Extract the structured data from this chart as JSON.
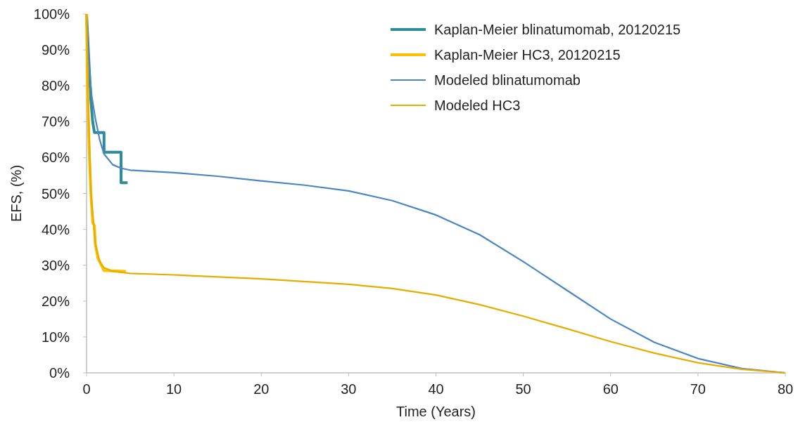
{
  "chart_data": {
    "type": "line",
    "xlabel": "Time (Years)",
    "ylabel": "EFS, (%)",
    "xlim": [
      0,
      80
    ],
    "xticks": [
      0,
      10,
      20,
      30,
      40,
      50,
      60,
      70,
      80
    ],
    "ylim": [
      0,
      100
    ],
    "yticks": [
      {
        "value": 0,
        "label": "0%"
      },
      {
        "value": 10,
        "label": "10%"
      },
      {
        "value": 20,
        "label": "20%"
      },
      {
        "value": 30,
        "label": "30%"
      },
      {
        "value": 40,
        "label": "40%"
      },
      {
        "value": 50,
        "label": "50%"
      },
      {
        "value": 60,
        "label": "60%"
      },
      {
        "value": 70,
        "label": "70%"
      },
      {
        "value": 80,
        "label": "80%"
      },
      {
        "value": 90,
        "label": "90%"
      },
      {
        "value": 100,
        "label": "100%"
      }
    ],
    "grid": false,
    "legend": "top right",
    "marker": "none",
    "line_style": "solid",
    "series": [
      {
        "name": "Kaplan-Meier blinatumomab, 20120215",
        "color": "#2e8b9a",
        "x": [
          0,
          0.1,
          0.3,
          0.5,
          0.7,
          0.9,
          2.0,
          2.0,
          3.95,
          3.95,
          4.7
        ],
        "values": [
          100,
          95,
          85,
          76,
          70,
          67,
          67,
          61.5,
          61.5,
          53,
          53
        ]
      },
      {
        "name": "Kaplan-Meier HC3, 20120215",
        "color": "#ffc000",
        "x": [
          0,
          0.1,
          0.3,
          0.5,
          0.7,
          0.9,
          1.0,
          1.3,
          1.7,
          2.0,
          4.5
        ],
        "values": [
          100,
          80,
          62,
          50,
          42,
          41,
          36,
          32,
          30,
          28.5,
          28.3
        ]
      },
      {
        "name": "Modeled blinatumomab",
        "color": "#4a86c5",
        "x": [
          0,
          0.3,
          0.6,
          1,
          1.5,
          2,
          3,
          4,
          5,
          10,
          15,
          20,
          25,
          30,
          35,
          40,
          45,
          50,
          55,
          60,
          65,
          70,
          75,
          80
        ],
        "values": [
          100,
          85,
          77,
          71,
          65,
          61,
          58,
          57,
          56.5,
          55.8,
          54.8,
          53.5,
          52.3,
          50.7,
          48,
          44,
          38.5,
          31,
          23,
          15,
          8.5,
          4,
          1.2,
          0
        ]
      },
      {
        "name": "Modeled HC3",
        "color": "#e6ac00",
        "x": [
          0,
          0.2,
          0.5,
          1,
          1.5,
          2,
          3,
          5,
          10,
          20,
          30,
          35,
          40,
          45,
          50,
          55,
          60,
          65,
          70,
          75,
          80
        ],
        "values": [
          100,
          75,
          50,
          36,
          31,
          29.3,
          28.3,
          27.7,
          27.3,
          26.2,
          24.7,
          23.5,
          21.7,
          19,
          15.8,
          12.3,
          8.7,
          5.5,
          2.8,
          1,
          0
        ]
      }
    ]
  }
}
